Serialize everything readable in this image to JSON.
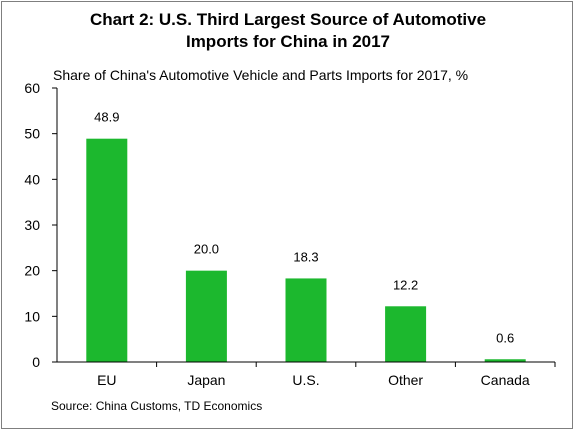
{
  "chart_data": {
    "type": "bar",
    "title": [
      "Chart 2: U.S. Third Largest Source of Automotive",
      "Imports for China in 2017"
    ],
    "subtitle": "Share of China's Automotive Vehicle and Parts Imports for 2017, %",
    "categories": [
      "EU",
      "Japan",
      "U.S.",
      "Other",
      "Canada"
    ],
    "values": [
      48.9,
      20.0,
      18.3,
      12.2,
      0.6
    ],
    "value_labels": [
      "48.9",
      "20.0",
      "18.3",
      "12.2",
      "0.6"
    ],
    "ylim": [
      0,
      60
    ],
    "yticks": [
      0,
      10,
      20,
      30,
      40,
      50,
      60
    ],
    "xlabel": "",
    "ylabel": "",
    "grid": false,
    "bar_color": "#1cb82e",
    "source": "Source: China Customs, TD Economics"
  }
}
